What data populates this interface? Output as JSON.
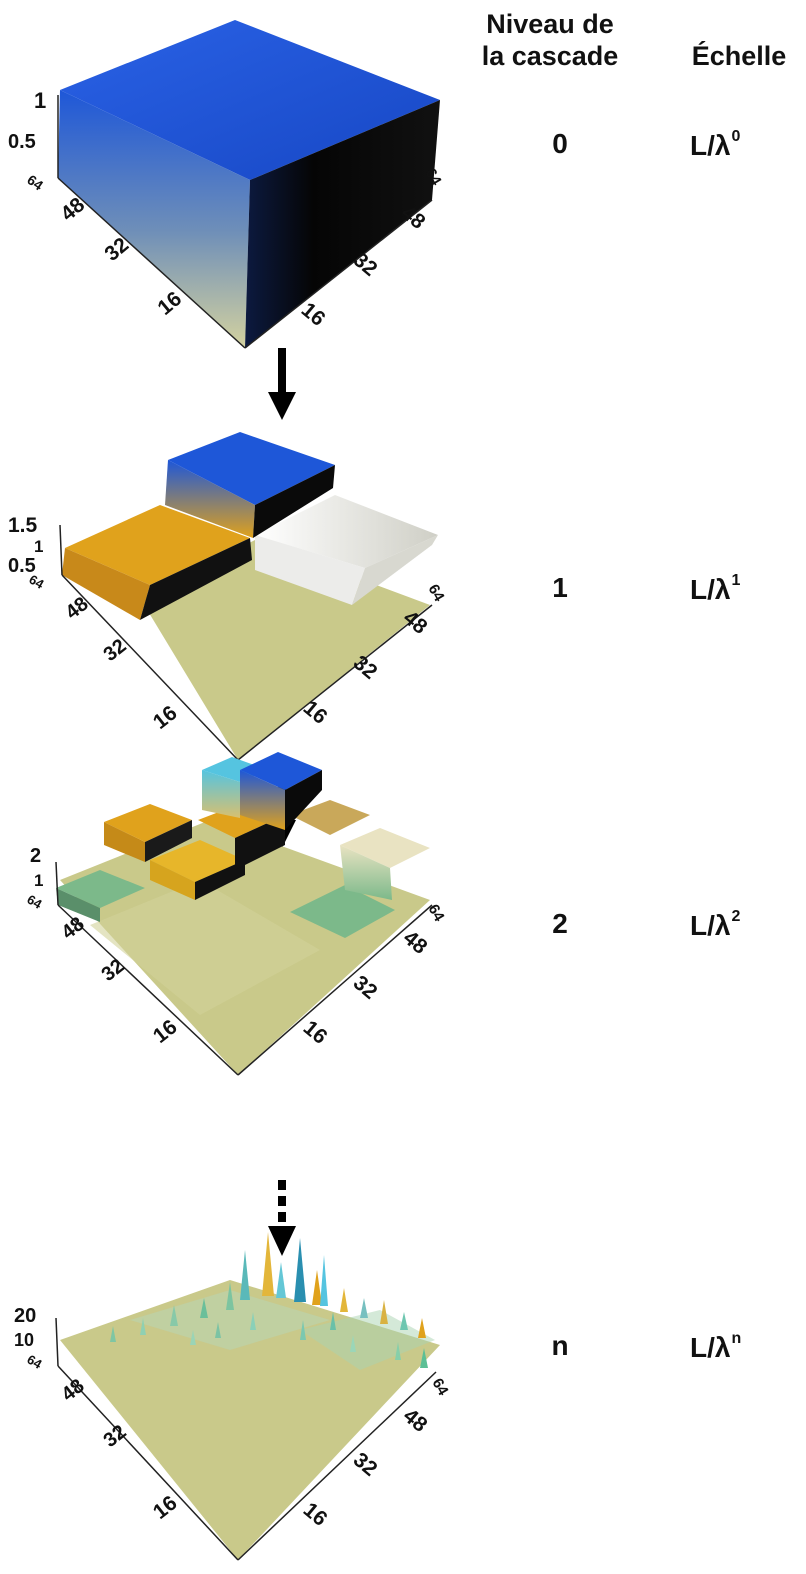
{
  "headers": {
    "level_line1": "Niveau de",
    "level_line2": "la cascade",
    "scale": "Échelle"
  },
  "stages": [
    {
      "level": "0",
      "scale_base": "L/λ",
      "scale_exp": "0",
      "z_ticks": [
        "1",
        "0.5"
      ]
    },
    {
      "level": "1",
      "scale_base": "L/λ",
      "scale_exp": "1",
      "z_ticks": [
        "1.5",
        "1",
        "0.5"
      ]
    },
    {
      "level": "2",
      "scale_base": "L/λ",
      "scale_exp": "2",
      "z_ticks": [
        "2",
        "1"
      ]
    },
    {
      "level": "n",
      "scale_base": "L/λ",
      "scale_exp": "n",
      "z_ticks": [
        "20",
        "10"
      ]
    }
  ],
  "axis_ticks": [
    "64",
    "48",
    "32",
    "16"
  ],
  "colors": {
    "blue": "#1e57d8",
    "orange": "#e0a21c",
    "olive": "#c9c98a",
    "grey": "#dcdcd2",
    "green": "#7cb98a",
    "cyan": "#55c4e0",
    "dark": "#111111"
  },
  "arrows": [
    "solid",
    "solid",
    "dotted"
  ]
}
